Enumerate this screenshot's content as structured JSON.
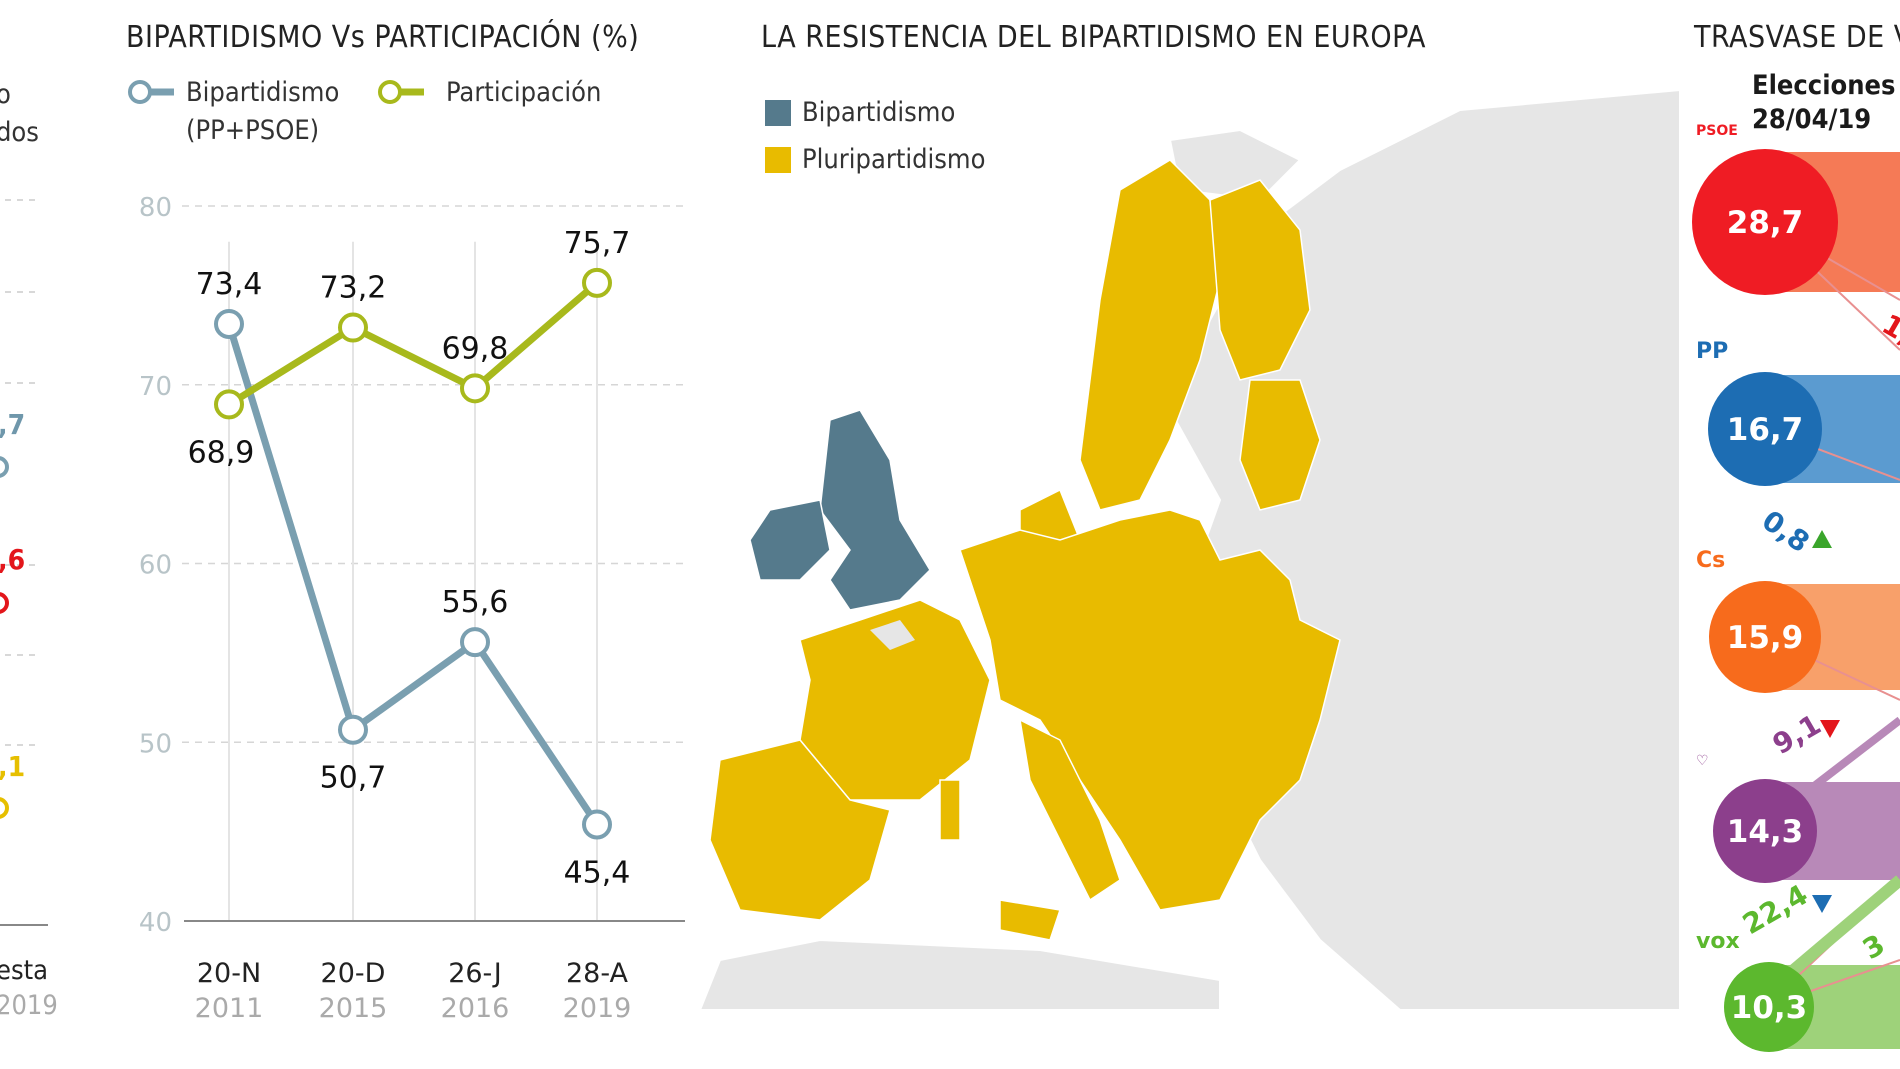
{
  "left_fragment": {
    "legend_lines": [
      "o",
      "dos"
    ],
    "values": [
      {
        "text": ",7",
        "color": "#6f97ab"
      },
      {
        "text": ",6",
        "color": "#e3161b"
      },
      {
        "text": ",1",
        "color": "#e6bf00"
      }
    ],
    "x_label": "esta",
    "x_year": "2019"
  },
  "chart_data": {
    "type": "line",
    "title": "BIPARTIDISMO Vs PARTICIPACIÓN (%)",
    "categories": [
      "20-N",
      "20-D",
      "26-J",
      "28-A"
    ],
    "category_years": [
      "2011",
      "2015",
      "2016",
      "2019"
    ],
    "ylim": [
      40,
      80
    ],
    "yticks": [
      40,
      50,
      60,
      70,
      80
    ],
    "grid": true,
    "legend_placement": "top",
    "series": [
      {
        "name": "Bipartidismo",
        "name_line2": "(PP+PSOE)",
        "color": "#7a9fb0",
        "values": [
          73.4,
          50.7,
          55.6,
          45.4
        ],
        "labels": [
          "73,4",
          "50,7",
          "55,6",
          "45,4"
        ]
      },
      {
        "name": "Participación",
        "color": "#a8b91c",
        "values": [
          68.9,
          73.2,
          69.8,
          75.7
        ],
        "labels": [
          "68,9",
          "73,2",
          "69,8",
          "75,7"
        ]
      }
    ]
  },
  "map": {
    "title": "LA RESISTENCIA DEL BIPARTIDISMO EN EUROPA",
    "legend": [
      {
        "label": "Bipartidismo",
        "color": "#557a8c"
      },
      {
        "label": "Pluripartidismo",
        "color": "#e8bb00"
      }
    ]
  },
  "trasvase": {
    "title": "TRASVASE DE V",
    "subtitle_line1": "Elecciones",
    "subtitle_line2": "28/04/19",
    "parties": [
      {
        "logo": "PSOE",
        "value": "28,7",
        "color": "#ef1c24",
        "bar": "#f57a56"
      },
      {
        "logo": "PP",
        "value": "16,7",
        "color": "#1d6db3",
        "bar": "#5b9bd0"
      },
      {
        "logo": "Cs",
        "value": "15,9",
        "color": "#f76b1c",
        "bar": "#f8a06a"
      },
      {
        "logo": "Podemos",
        "value": "14,3",
        "color": "#8c3f8c",
        "bar": "#b889b8"
      },
      {
        "logo": "vox",
        "value": "10,3",
        "color": "#5cb82e",
        "bar": "#9ed27a"
      }
    ],
    "flows": [
      {
        "text": "1,",
        "color": "#e3161b"
      },
      {
        "text": "0,8",
        "color": "#1d6db3"
      },
      {
        "text": "9,1",
        "color": "#8c3f8c"
      },
      {
        "text": "22,4",
        "color": "#5cb82e"
      },
      {
        "text": "3",
        "color": "#5cb82e"
      }
    ]
  }
}
